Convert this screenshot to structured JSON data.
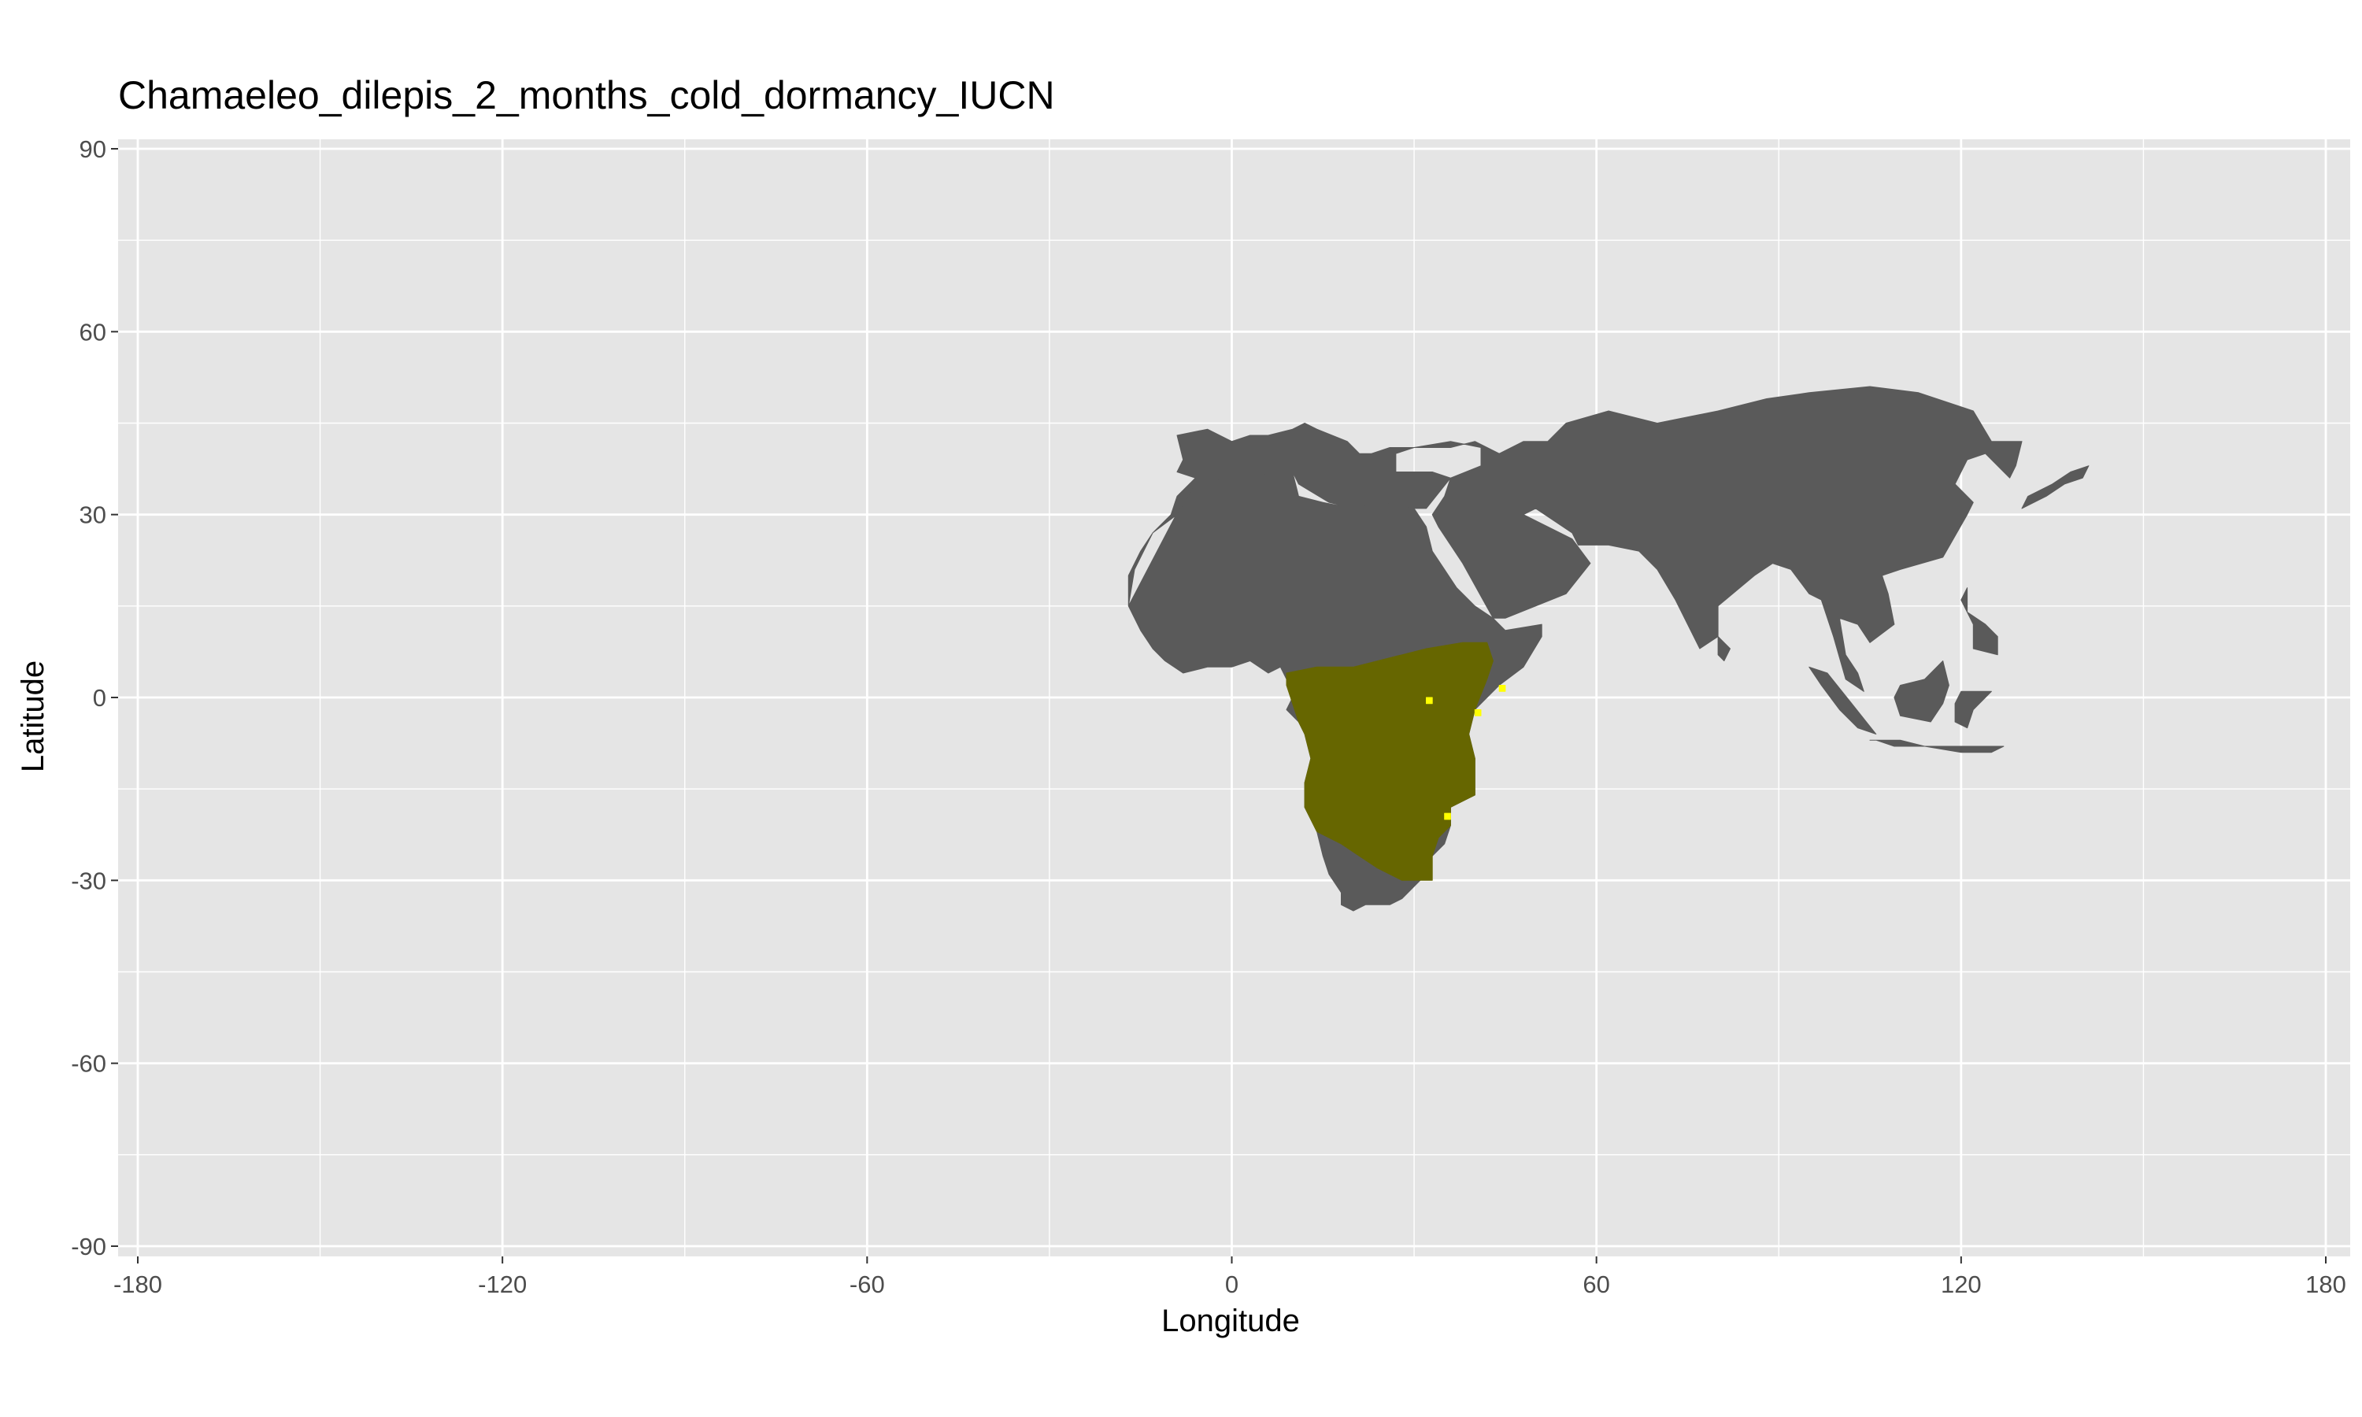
{
  "chart_data": {
    "type": "heatmap",
    "title": "Chamaeleo_dilepis_2_months_cold_dormancy_IUCN",
    "xlabel": "Longitude",
    "ylabel": "Latitude",
    "xlim": [
      -180,
      180
    ],
    "ylim": [
      -90,
      90
    ],
    "x_ticks": [
      "-180",
      "-120",
      "-60",
      "0",
      "60",
      "120",
      "180"
    ],
    "y_ticks": [
      "-90",
      "-60",
      "-30",
      "0",
      "30",
      "60",
      "90"
    ],
    "x_tick_values": [
      -180,
      -120,
      -60,
      0,
      60,
      120,
      180
    ],
    "y_tick_values": [
      -90,
      -60,
      -30,
      0,
      30,
      60,
      90
    ],
    "grid": true,
    "colors": {
      "panel": "#e5e5e5",
      "grid": "#ffffff",
      "land": "#5a5a5a",
      "range_overlap": "#666600",
      "range_only": "#ffff00"
    },
    "regions": [
      {
        "name": "land",
        "color": "#5a5a5a",
        "polygons": [
          [
            [
              -17,
              15
            ],
            [
              -16,
              21
            ],
            [
              -13,
              27
            ],
            [
              -9,
              30
            ],
            [
              -6,
              35
            ],
            [
              0,
              36
            ],
            [
              10,
              37
            ],
            [
              11,
              35
            ],
            [
              16,
              32
            ],
            [
              20,
              31
            ],
            [
              25,
              32
            ],
            [
              30,
              31
            ],
            [
              32,
              31
            ],
            [
              36,
              36
            ],
            [
              33,
              37
            ],
            [
              27,
              37
            ],
            [
              27,
              40
            ],
            [
              30,
              41
            ],
            [
              36,
              42
            ],
            [
              41,
              41
            ],
            [
              41,
              38
            ],
            [
              36,
              36
            ],
            [
              35,
              33
            ],
            [
              33,
              30
            ],
            [
              34,
              28
            ],
            [
              38,
              22
            ],
            [
              43,
              13
            ],
            [
              45,
              13
            ],
            [
              50,
              15
            ],
            [
              55,
              17
            ],
            [
              59,
              22
            ],
            [
              56,
              26
            ],
            [
              50,
              29
            ],
            [
              48,
              30
            ],
            [
              50,
              31
            ],
            [
              56,
              27
            ],
            [
              57,
              25
            ],
            [
              62,
              25
            ],
            [
              67,
              24
            ],
            [
              70,
              21
            ],
            [
              73,
              16
            ],
            [
              77,
              8
            ],
            [
              80,
              10
            ],
            [
              80,
              15
            ],
            [
              86,
              20
            ],
            [
              89,
              22
            ],
            [
              92,
              21
            ],
            [
              95,
              17
            ],
            [
              97,
              16
            ],
            [
              99,
              10
            ],
            [
              101,
              3
            ],
            [
              104,
              1
            ],
            [
              103,
              4
            ],
            [
              101,
              7
            ],
            [
              100,
              13
            ],
            [
              103,
              12
            ],
            [
              105,
              9
            ],
            [
              109,
              12
            ],
            [
              108,
              17
            ],
            [
              107,
              20
            ],
            [
              110,
              21
            ],
            [
              117,
              23
            ],
            [
              121,
              30
            ],
            [
              122,
              32
            ],
            [
              119,
              35
            ],
            [
              121,
              39
            ],
            [
              124,
              40
            ],
            [
              128,
              36
            ],
            [
              129,
              38
            ],
            [
              130,
              42
            ],
            [
              125,
              42
            ],
            [
              122,
              47
            ],
            [
              113,
              50
            ],
            [
              105,
              51
            ],
            [
              95,
              50
            ],
            [
              88,
              49
            ],
            [
              80,
              47
            ],
            [
              70,
              45
            ],
            [
              62,
              47
            ],
            [
              55,
              45
            ],
            [
              52,
              42
            ],
            [
              48,
              42
            ],
            [
              44,
              40
            ],
            [
              40,
              42
            ],
            [
              36,
              41
            ],
            [
              30,
              41
            ],
            [
              26,
              41
            ],
            [
              23,
              40
            ],
            [
              21,
              40
            ],
            [
              19,
              42
            ],
            [
              14,
              44
            ],
            [
              12,
              45
            ],
            [
              10,
              44
            ],
            [
              6,
              43
            ],
            [
              3,
              43
            ],
            [
              0,
              42
            ],
            [
              -4,
              44
            ],
            [
              -9,
              43
            ],
            [
              -8,
              39
            ],
            [
              -9,
              37
            ],
            [
              -6,
              36
            ],
            [
              -9,
              33
            ],
            [
              -10,
              30
            ],
            [
              -13,
              27
            ],
            [
              -15,
              24
            ],
            [
              -17,
              20
            ],
            [
              -17,
              15
            ],
            [
              -15,
              11
            ],
            [
              -13,
              8
            ],
            [
              -11,
              6
            ],
            [
              -8,
              4
            ],
            [
              -4,
              5
            ],
            [
              0,
              5
            ],
            [
              3,
              6
            ],
            [
              6,
              4
            ],
            [
              8,
              5
            ],
            [
              9,
              3
            ],
            [
              10,
              0
            ],
            [
              9,
              -2
            ],
            [
              11,
              -4
            ],
            [
              12,
              -6
            ],
            [
              13,
              -10
            ],
            [
              12,
              -14
            ],
            [
              12,
              -18
            ],
            [
              14,
              -22
            ],
            [
              15,
              -26
            ],
            [
              16,
              -29
            ],
            [
              18,
              -32
            ],
            [
              18,
              -34
            ],
            [
              20,
              -35
            ],
            [
              22,
              -34
            ],
            [
              26,
              -34
            ],
            [
              28,
              -33
            ],
            [
              31,
              -30
            ],
            [
              33,
              -26
            ],
            [
              35,
              -24
            ],
            [
              36,
              -21
            ],
            [
              36,
              -18
            ],
            [
              40,
              -16
            ],
            [
              40,
              -10
            ],
            [
              39,
              -6
            ],
            [
              40,
              -2
            ],
            [
              42,
              0
            ],
            [
              44,
              2
            ],
            [
              48,
              5
            ],
            [
              51,
              10
            ],
            [
              51,
              12
            ],
            [
              45,
              11
            ],
            [
              43,
              13
            ],
            [
              40,
              15
            ],
            [
              37,
              18
            ],
            [
              35,
              21
            ],
            [
              33,
              24
            ],
            [
              32,
              28
            ],
            [
              30,
              31
            ],
            [
              25,
              32
            ],
            [
              20,
              31
            ],
            [
              15,
              32
            ],
            [
              11,
              33
            ],
            [
              10,
              37
            ],
            [
              5,
              37
            ],
            [
              0,
              36
            ],
            [
              -6,
              36
            ],
            [
              -17,
              15
            ]
          ],
          [
            [
              118,
              2
            ],
            [
              117,
              -1
            ],
            [
              115,
              -4
            ],
            [
              110,
              -3
            ],
            [
              109,
              0
            ],
            [
              110,
              2
            ],
            [
              114,
              3
            ],
            [
              117,
              6
            ],
            [
              118,
              2
            ]
          ],
          [
            [
              95,
              5
            ],
            [
              98,
              4
            ],
            [
              102,
              -1
            ],
            [
              106,
              -6
            ],
            [
              103,
              -5
            ],
            [
              100,
              -2
            ],
            [
              97,
              2
            ],
            [
              95,
              5
            ]
          ],
          [
            [
              105,
              -7
            ],
            [
              110,
              -7
            ],
            [
              114,
              -8
            ],
            [
              109,
              -8
            ],
            [
              106,
              -7
            ],
            [
              105,
              -7
            ]
          ],
          [
            [
              120,
              1
            ],
            [
              125,
              1
            ],
            [
              122,
              -2
            ],
            [
              121,
              -5
            ],
            [
              119,
              -4
            ],
            [
              119,
              -1
            ],
            [
              120,
              1
            ]
          ],
          [
            [
              122,
              8
            ],
            [
              126,
              7
            ],
            [
              126,
              10
            ],
            [
              124,
              12
            ],
            [
              121,
              14
            ],
            [
              121,
              18
            ],
            [
              120,
              16
            ],
            [
              122,
              12
            ],
            [
              122,
              8
            ]
          ],
          [
            [
              114,
              -8
            ],
            [
              120,
              -9
            ],
            [
              125,
              -9
            ],
            [
              127,
              -8
            ],
            [
              122,
              -8
            ],
            [
              116,
              -8
            ],
            [
              114,
              -8
            ]
          ],
          [
            [
              130,
              31
            ],
            [
              134,
              33
            ],
            [
              137,
              35
            ],
            [
              140,
              36
            ],
            [
              141,
              38
            ],
            [
              138,
              37
            ],
            [
              135,
              35
            ],
            [
              131,
              33
            ],
            [
              130,
              31
            ]
          ],
          [
            [
              80,
              10
            ],
            [
              82,
              8
            ],
            [
              81,
              6
            ],
            [
              80,
              7
            ],
            [
              80,
              10
            ]
          ]
        ]
      },
      {
        "name": "range_overlap",
        "color": "#666600",
        "polygons": [
          [
            [
              9,
              4
            ],
            [
              14,
              5
            ],
            [
              20,
              5
            ],
            [
              28,
              7
            ],
            [
              32,
              8
            ],
            [
              38,
              9
            ],
            [
              42,
              9
            ],
            [
              43,
              6
            ],
            [
              42,
              3
            ],
            [
              40,
              -2
            ],
            [
              39,
              -6
            ],
            [
              40,
              -10
            ],
            [
              40,
              -16
            ],
            [
              36,
              -18
            ],
            [
              36,
              -21
            ],
            [
              34,
              -23
            ],
            [
              33,
              -26
            ],
            [
              33,
              -30
            ],
            [
              30,
              -30
            ],
            [
              28,
              -30
            ],
            [
              24,
              -28
            ],
            [
              21,
              -26
            ],
            [
              18,
              -24
            ],
            [
              14,
              -22
            ],
            [
              12,
              -18
            ],
            [
              12,
              -14
            ],
            [
              13,
              -10
            ],
            [
              12,
              -6
            ],
            [
              11,
              -4
            ],
            [
              10,
              -1
            ],
            [
              9,
              2
            ],
            [
              9,
              4
            ]
          ]
        ]
      },
      {
        "name": "range_only",
        "color": "#ffff00",
        "polygons": [
          [
            [
              32,
              -1
            ],
            [
              33,
              -1
            ],
            [
              33,
              0
            ],
            [
              32,
              0
            ],
            [
              32,
              -1
            ]
          ],
          [
            [
              44,
              1
            ],
            [
              45,
              1
            ],
            [
              45,
              2
            ],
            [
              44,
              2
            ],
            [
              44,
              1
            ]
          ],
          [
            [
              40,
              -3
            ],
            [
              41,
              -3
            ],
            [
              41,
              -2
            ],
            [
              40,
              -2
            ],
            [
              40,
              -3
            ]
          ],
          [
            [
              35,
              -20
            ],
            [
              36,
              -20
            ],
            [
              36,
              -19
            ],
            [
              35,
              -19
            ],
            [
              35,
              -20
            ]
          ]
        ]
      }
    ]
  }
}
